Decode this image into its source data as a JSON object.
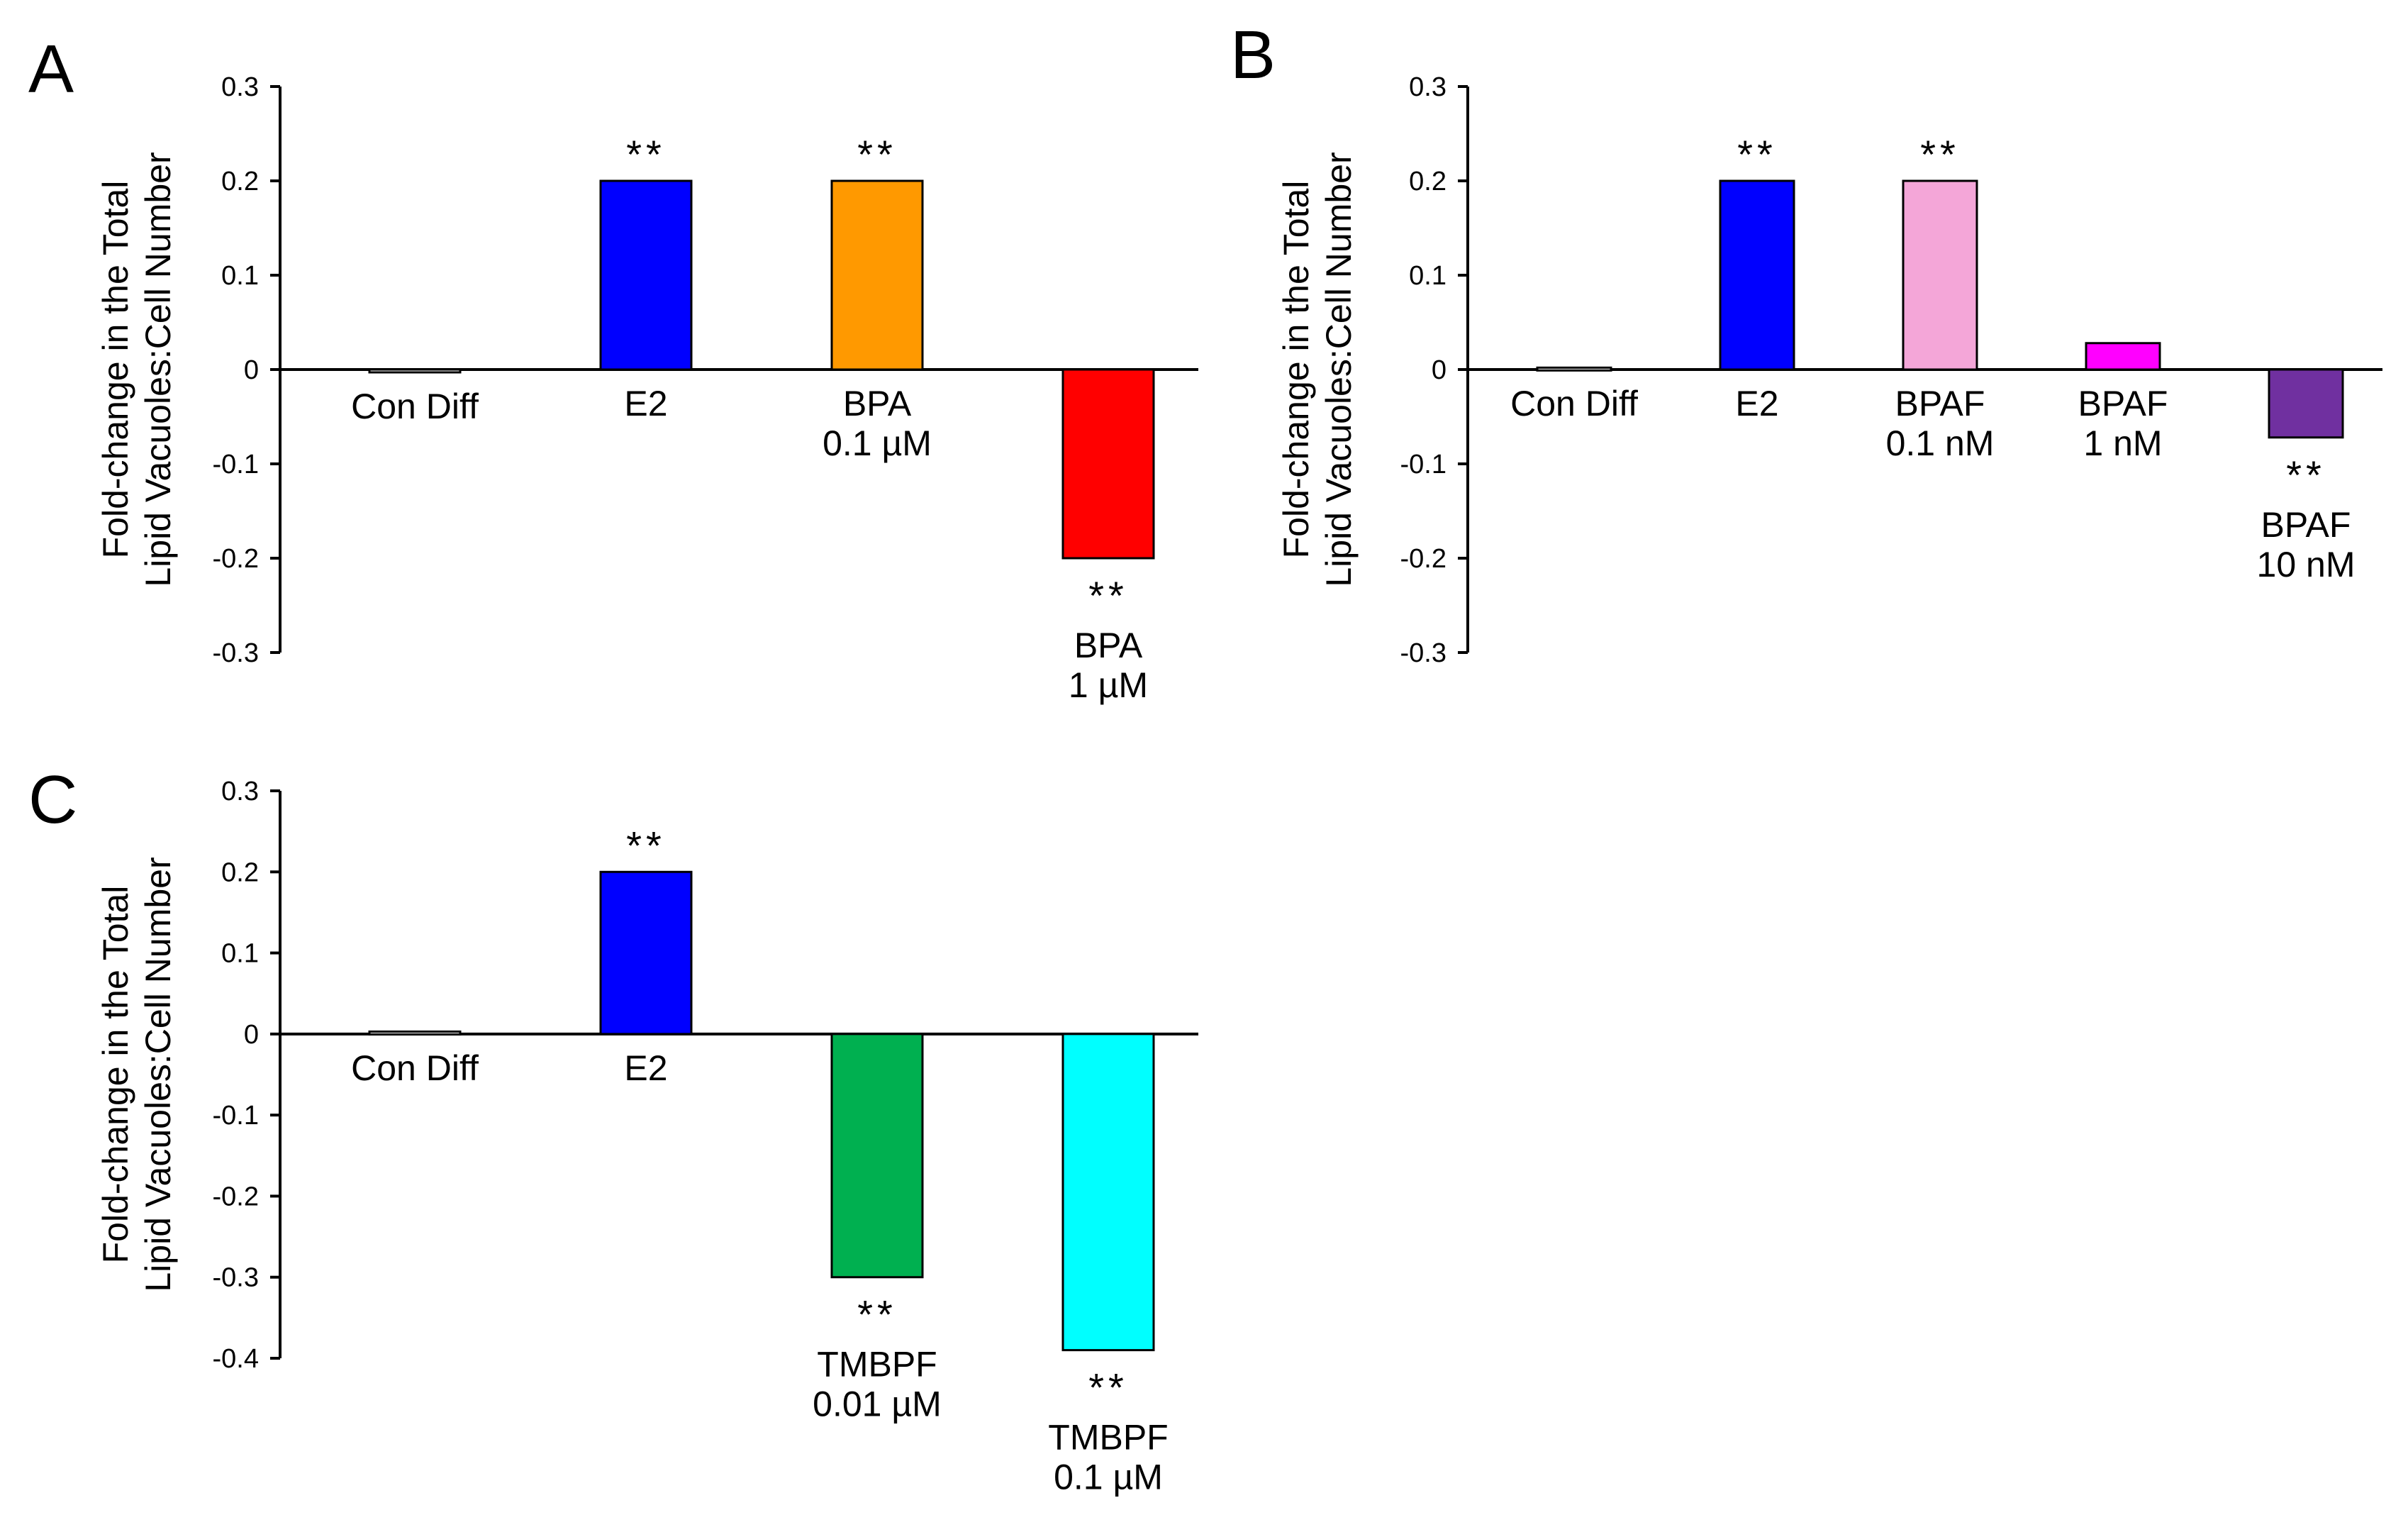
{
  "chart_data": [
    {
      "type": "bar",
      "panel": "A",
      "ylabel": [
        "Fold-change in the Total",
        "Lipid Vacuoles:Cell Number"
      ],
      "ylim": [
        -0.3,
        0.3
      ],
      "yticks": [
        0.3,
        0.2,
        0.1,
        0,
        -0.1,
        -0.2,
        -0.3
      ],
      "ytick_labels": [
        "0.3",
        "0.2",
        "0.1",
        "0",
        "-0.1",
        "-0.2",
        "-0.3"
      ],
      "categories": [
        {
          "lines": [
            "Con Diff"
          ],
          "value": -0.003,
          "color": "#ffffff",
          "sig": ""
        },
        {
          "lines": [
            "E2"
          ],
          "value": 0.2,
          "color": "#0000ff",
          "sig": "**"
        },
        {
          "lines": [
            "BPA",
            "0.1 µM"
          ],
          "value": 0.2,
          "color": "#ff9900",
          "sig": "**"
        },
        {
          "lines": [
            "BPA",
            "1 µM"
          ],
          "value": -0.2,
          "color": "#ff0000",
          "sig": "**"
        }
      ]
    },
    {
      "type": "bar",
      "panel": "B",
      "ylabel": [
        "Fold-change in the Total",
        "Lipid Vacuoles:Cell Number"
      ],
      "ylim": [
        -0.3,
        0.3
      ],
      "yticks": [
        0.3,
        0.2,
        0.1,
        0,
        -0.1,
        -0.2,
        -0.3
      ],
      "ytick_labels": [
        "0.3",
        "0.2",
        "0.1",
        "0",
        "-0.1",
        "-0.2",
        "-0.3"
      ],
      "categories": [
        {
          "lines": [
            "Con Diff"
          ],
          "value": 0.002,
          "color": "#ffffff",
          "sig": ""
        },
        {
          "lines": [
            "E2"
          ],
          "value": 0.2,
          "color": "#0000ff",
          "sig": "**"
        },
        {
          "lines": [
            "BPAF",
            "0.1 nM"
          ],
          "value": 0.2,
          "color": "#f4a6d8",
          "sig": "**"
        },
        {
          "lines": [
            "BPAF",
            "1 nM"
          ],
          "value": 0.028,
          "color": "#ff00ff",
          "sig": ""
        },
        {
          "lines": [
            "BPAF",
            "10 nM"
          ],
          "value": -0.072,
          "color": "#7030a0",
          "sig": "**"
        }
      ]
    },
    {
      "type": "bar",
      "panel": "C",
      "ylabel": [
        "Fold-change in the Total",
        "Lipid Vacuoles:Cell Number"
      ],
      "ylim": [
        -0.4,
        0.3
      ],
      "yticks": [
        0.3,
        0.2,
        0.1,
        0,
        -0.1,
        -0.2,
        -0.3,
        -0.4
      ],
      "ytick_labels": [
        "0.3",
        "0.2",
        "0.1",
        "0",
        "-0.1",
        "-0.2",
        "-0.3",
        "-0.4"
      ],
      "categories": [
        {
          "lines": [
            "Con Diff"
          ],
          "value": 0.003,
          "color": "#ffffff",
          "sig": ""
        },
        {
          "lines": [
            "E2"
          ],
          "value": 0.2,
          "color": "#0000ff",
          "sig": "**"
        },
        {
          "lines": [
            "TMBPF",
            "0.01 µM"
          ],
          "value": -0.3,
          "color": "#00b050",
          "sig": "**"
        },
        {
          "lines": [
            "TMBPF",
            "0.1 µM"
          ],
          "value": -0.39,
          "color": "#00ffff",
          "sig": "**"
        }
      ]
    }
  ]
}
